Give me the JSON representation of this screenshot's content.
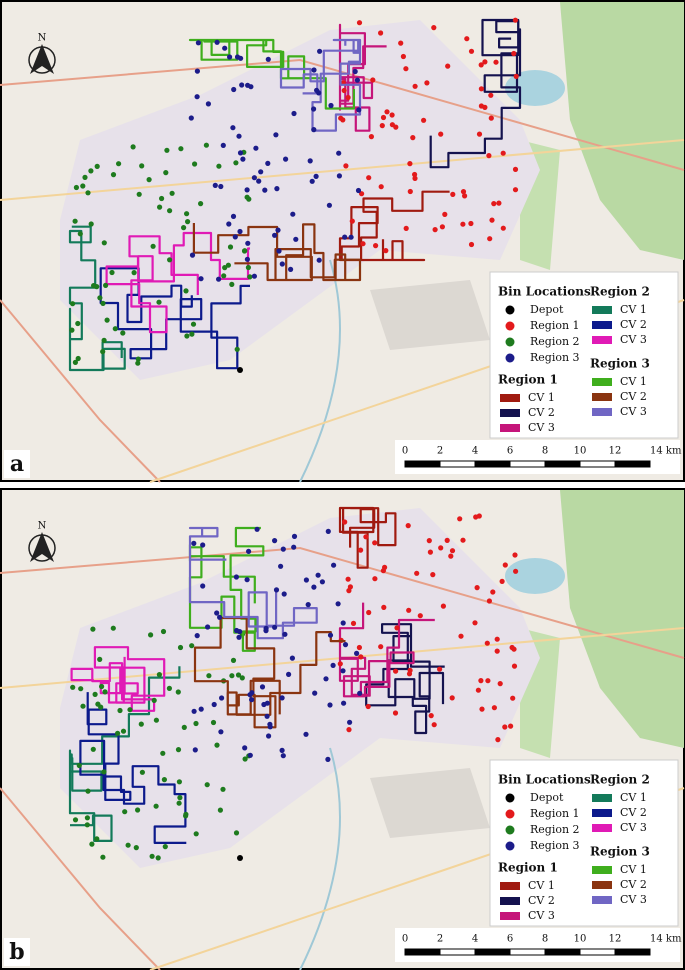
{
  "panels": [
    {
      "label": "a",
      "north": "N",
      "legend": [
        {
          "title": "Bin Locations",
          "items": [
            {
              "name": "Depot",
              "color": "#000000"
            },
            {
              "name": "Region 1",
              "color": "#e31a1c"
            },
            {
              "name": "Region 2",
              "color": "#1e7b1e"
            },
            {
              "name": "Region 3",
              "color": "#1c1c8a"
            }
          ]
        },
        {
          "title": "Region 1",
          "items": [
            {
              "name": "CV 1",
              "color": "#a01a10"
            },
            {
              "name": "CV 2",
              "color": "#14124f"
            },
            {
              "name": "CV 3",
              "color": "#c5157a"
            }
          ]
        },
        {
          "title": "Region 2",
          "items": [
            {
              "name": "CV 1",
              "color": "#137a5a"
            },
            {
              "name": "CV 2",
              "color": "#0c1a8c"
            },
            {
              "name": "CV 3",
              "color": "#e01ab5"
            }
          ]
        },
        {
          "title": "Region 3",
          "items": [
            {
              "name": "CV 1",
              "color": "#3fae1d"
            },
            {
              "name": "CV 2",
              "color": "#8a3410"
            },
            {
              "name": "CV 3",
              "color": "#7066c4"
            }
          ]
        }
      ],
      "scale": [
        "0",
        "2",
        "4",
        "6",
        "8",
        "10",
        "12",
        "14 km"
      ]
    },
    {
      "label": "b",
      "north": "N",
      "legend": [
        {
          "title": "Bin Locations",
          "items": [
            {
              "name": "Depot",
              "color": "#000000"
            },
            {
              "name": "Region 1",
              "color": "#e31a1c"
            },
            {
              "name": "Region 2",
              "color": "#1e7b1e"
            },
            {
              "name": "Region 3",
              "color": "#1c1c8a"
            }
          ]
        },
        {
          "title": "Region 1",
          "items": [
            {
              "name": "CV 1",
              "color": "#a01a10"
            },
            {
              "name": "CV 2",
              "color": "#14124f"
            },
            {
              "name": "CV 3",
              "color": "#c5157a"
            }
          ]
        },
        {
          "title": "Region 2",
          "items": [
            {
              "name": "CV 1",
              "color": "#137a5a"
            },
            {
              "name": "CV 2",
              "color": "#0c1a8c"
            },
            {
              "name": "CV 3",
              "color": "#e01ab5"
            }
          ]
        },
        {
          "title": "Region 3",
          "items": [
            {
              "name": "CV 1",
              "color": "#3fae1d"
            },
            {
              "name": "CV 2",
              "color": "#8a3410"
            },
            {
              "name": "CV 3",
              "color": "#7066c4"
            }
          ]
        }
      ],
      "scale": [
        "0",
        "2",
        "4",
        "6",
        "8",
        "10",
        "12",
        "14 km"
      ]
    }
  ]
}
